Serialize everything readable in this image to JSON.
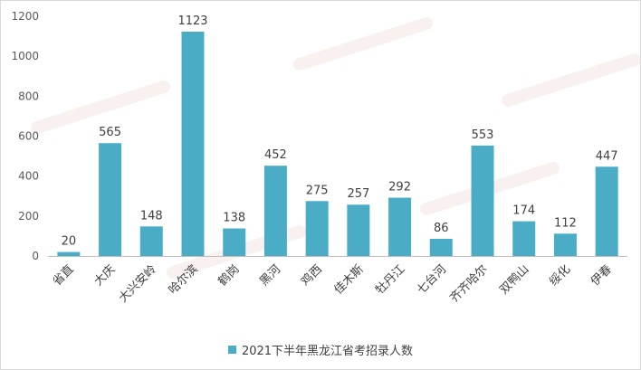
{
  "chart_data": {
    "type": "bar",
    "categories": [
      "省直",
      "大庆",
      "大兴安岭",
      "哈尔滨",
      "鹤岗",
      "黑河",
      "鸡西",
      "佳木斯",
      "牡丹江",
      "七台河",
      "齐齐哈尔",
      "双鸭山",
      "绥化",
      "伊春"
    ],
    "series": [
      {
        "name": "2021下半年黑龙江省考招录人数",
        "values": [
          20,
          565,
          148,
          1123,
          138,
          452,
          275,
          257,
          292,
          86,
          553,
          174,
          112,
          447
        ],
        "color": "#4bacc6"
      }
    ],
    "data_labels": [
      "20",
      "565",
      "148",
      "1123",
      "138",
      "452",
      "275",
      "257",
      "292",
      "86",
      "553",
      "174",
      "112",
      "447"
    ],
    "yticks": [
      "0",
      "200",
      "400",
      "600",
      "800",
      "1000",
      "1200"
    ],
    "ylim": [
      0,
      1200
    ],
    "grid": false,
    "legend_position": "bottom"
  }
}
